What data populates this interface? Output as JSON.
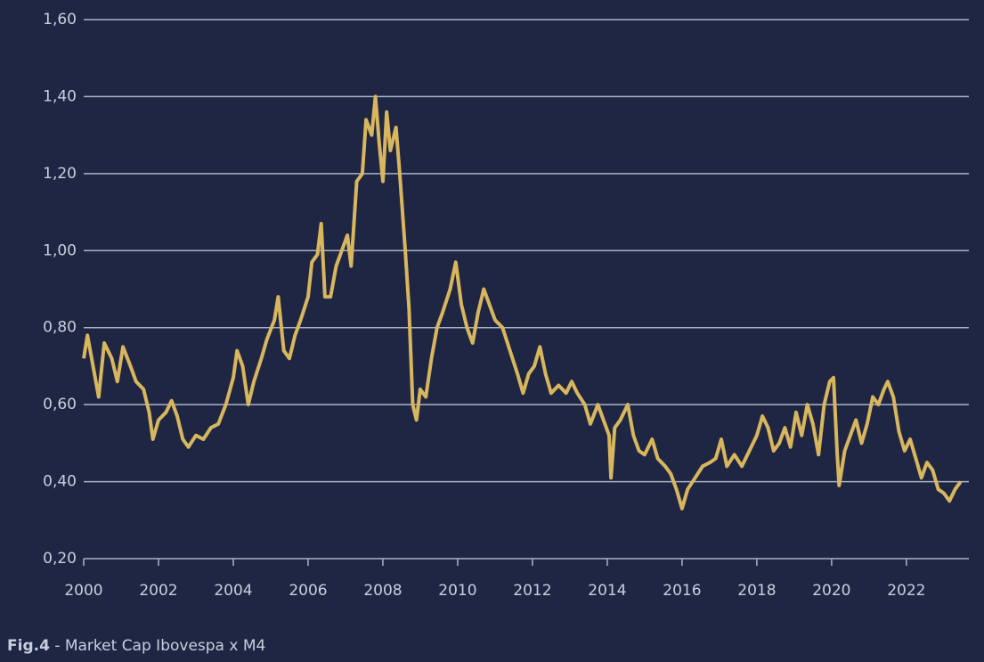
{
  "chart_data": {
    "type": "line",
    "caption_label": "Fig.4",
    "caption": "- Market Cap Ibovespa x M4",
    "color": "#d8b65e",
    "x": [
      2000.0,
      2000.1,
      2000.25,
      2000.4,
      2000.55,
      2000.75,
      2000.9,
      2001.05,
      2001.25,
      2001.4,
      2001.6,
      2001.75,
      2001.85,
      2002.0,
      2002.2,
      2002.35,
      2002.5,
      2002.65,
      2002.8,
      2003.0,
      2003.2,
      2003.4,
      2003.6,
      2003.8,
      2004.0,
      2004.1,
      2004.25,
      2004.4,
      2004.55,
      2004.75,
      2004.9,
      2005.1,
      2005.2,
      2005.35,
      2005.5,
      2005.65,
      2005.8,
      2006.0,
      2006.1,
      2006.25,
      2006.35,
      2006.45,
      2006.6,
      2006.75,
      2006.9,
      2007.05,
      2007.15,
      2007.3,
      2007.45,
      2007.55,
      2007.7,
      2007.8,
      2007.9,
      2008.0,
      2008.1,
      2008.2,
      2008.35,
      2008.45,
      2008.6,
      2008.7,
      2008.8,
      2008.9,
      2009.0,
      2009.15,
      2009.3,
      2009.45,
      2009.6,
      2009.8,
      2009.95,
      2010.1,
      2010.25,
      2010.4,
      2010.55,
      2010.7,
      2010.85,
      2011.0,
      2011.2,
      2011.4,
      2011.6,
      2011.75,
      2011.9,
      2012.05,
      2012.2,
      2012.35,
      2012.5,
      2012.7,
      2012.9,
      2013.05,
      2013.2,
      2013.4,
      2013.55,
      2013.75,
      2013.9,
      2014.05,
      2014.1,
      2014.2,
      2014.35,
      2014.55,
      2014.7,
      2014.85,
      2015.0,
      2015.2,
      2015.35,
      2015.55,
      2015.7,
      2015.85,
      2016.0,
      2016.15,
      2016.35,
      2016.55,
      2016.75,
      2016.9,
      2017.05,
      2017.2,
      2017.4,
      2017.6,
      2017.8,
      2018.0,
      2018.15,
      2018.3,
      2018.45,
      2018.6,
      2018.75,
      2018.9,
      2019.05,
      2019.2,
      2019.35,
      2019.5,
      2019.65,
      2019.8,
      2019.95,
      2020.05,
      2020.15,
      2020.2,
      2020.35,
      2020.5,
      2020.65,
      2020.8,
      2020.95,
      2021.1,
      2021.25,
      2021.4,
      2021.5,
      2021.65,
      2021.8,
      2021.95,
      2022.1,
      2022.25,
      2022.4,
      2022.55,
      2022.7,
      2022.85,
      2023.0,
      2023.15,
      2023.3,
      2023.45
    ],
    "values": [
      0.72,
      0.78,
      0.7,
      0.62,
      0.76,
      0.72,
      0.66,
      0.75,
      0.7,
      0.66,
      0.64,
      0.58,
      0.51,
      0.56,
      0.58,
      0.61,
      0.57,
      0.51,
      0.49,
      0.52,
      0.51,
      0.54,
      0.55,
      0.6,
      0.67,
      0.74,
      0.7,
      0.6,
      0.66,
      0.72,
      0.77,
      0.82,
      0.88,
      0.74,
      0.72,
      0.78,
      0.82,
      0.88,
      0.97,
      0.99,
      1.07,
      0.88,
      0.88,
      0.96,
      1.0,
      1.04,
      0.96,
      1.18,
      1.2,
      1.34,
      1.3,
      1.4,
      1.28,
      1.18,
      1.36,
      1.26,
      1.32,
      1.2,
      1.0,
      0.85,
      0.6,
      0.56,
      0.64,
      0.62,
      0.72,
      0.8,
      0.84,
      0.9,
      0.97,
      0.86,
      0.8,
      0.76,
      0.84,
      0.9,
      0.86,
      0.82,
      0.8,
      0.74,
      0.68,
      0.63,
      0.68,
      0.7,
      0.75,
      0.68,
      0.63,
      0.65,
      0.63,
      0.66,
      0.63,
      0.6,
      0.55,
      0.6,
      0.56,
      0.52,
      0.41,
      0.54,
      0.56,
      0.6,
      0.52,
      0.48,
      0.47,
      0.51,
      0.46,
      0.44,
      0.42,
      0.38,
      0.33,
      0.38,
      0.41,
      0.44,
      0.45,
      0.46,
      0.51,
      0.44,
      0.47,
      0.44,
      0.48,
      0.52,
      0.57,
      0.54,
      0.48,
      0.5,
      0.54,
      0.49,
      0.58,
      0.52,
      0.6,
      0.55,
      0.47,
      0.6,
      0.66,
      0.67,
      0.47,
      0.39,
      0.48,
      0.52,
      0.56,
      0.5,
      0.55,
      0.62,
      0.6,
      0.64,
      0.66,
      0.62,
      0.53,
      0.48,
      0.51,
      0.46,
      0.41,
      0.45,
      0.43,
      0.38,
      0.37,
      0.35,
      0.38,
      0.4
    ],
    "xlim": [
      2000,
      2023.67
    ],
    "xticks": [
      2000,
      2002,
      2004,
      2006,
      2008,
      2010,
      2012,
      2014,
      2016,
      2018,
      2020,
      2022
    ],
    "ylim": [
      0.2,
      1.6
    ],
    "yticks": [
      {
        "value": 0.2,
        "label": "0,20"
      },
      {
        "value": 0.4,
        "label": "0,40"
      },
      {
        "value": 0.6,
        "label": "0,60"
      },
      {
        "value": 0.8,
        "label": "0,80"
      },
      {
        "value": 1.0,
        "label": "1,00"
      },
      {
        "value": 1.2,
        "label": "1,20"
      },
      {
        "value": 1.4,
        "label": "1,40"
      },
      {
        "value": 1.6,
        "label": "1,60"
      }
    ],
    "grid": true
  }
}
